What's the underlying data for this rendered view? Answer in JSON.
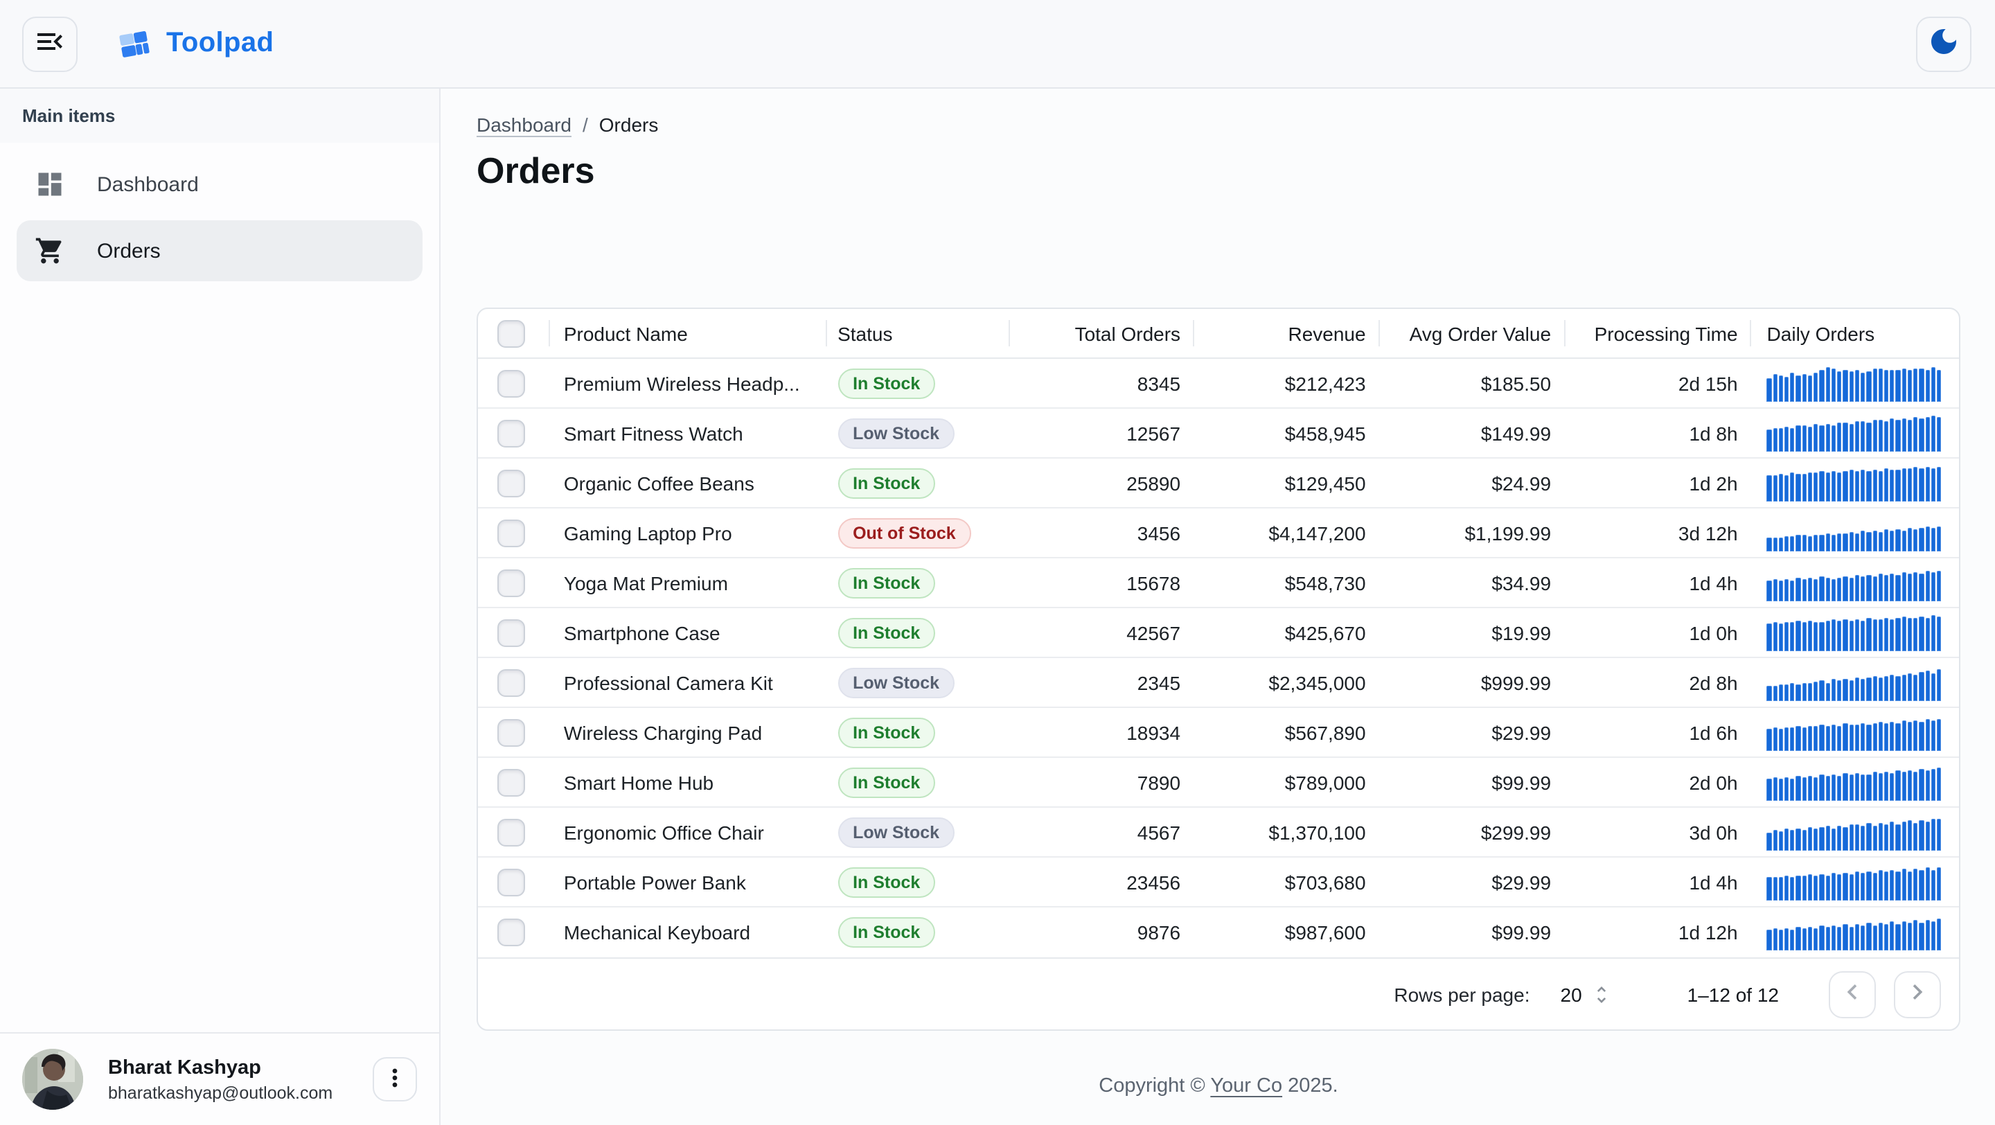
{
  "header": {
    "app_name": "Toolpad"
  },
  "sidebar": {
    "section_label": "Main items",
    "items": [
      {
        "label": "Dashboard",
        "icon": "dashboard-icon",
        "selected": false
      },
      {
        "label": "Orders",
        "icon": "cart-icon",
        "selected": true
      }
    ],
    "user": {
      "name": "Bharat Kashyap",
      "email": "bharatkashyap@outlook.com"
    }
  },
  "breadcrumb": {
    "parent": "Dashboard",
    "separator": "/",
    "current": "Orders"
  },
  "page": {
    "title": "Orders"
  },
  "table": {
    "columns": [
      "Product Name",
      "Status",
      "Total Orders",
      "Revenue",
      "Avg Order Value",
      "Processing Time",
      "Daily Orders"
    ],
    "rows": [
      {
        "product": "Premium Wireless Headp...",
        "status": "In Stock",
        "status_type": "success",
        "total_orders": "8345",
        "revenue": "$212,423",
        "avg_order_value": "$185.50",
        "processing_time": "2d 15h",
        "daily_orders": [
          65,
          75,
          70,
          68,
          80,
          72,
          74,
          70,
          78,
          85,
          95,
          90,
          82,
          88,
          84,
          86,
          80,
          83,
          90,
          92,
          88,
          85,
          87,
          90,
          86,
          89,
          92,
          88,
          95,
          85
        ]
      },
      {
        "product": "Smart Fitness Watch",
        "status": "Low Stock",
        "status_type": "neutral",
        "total_orders": "12567",
        "revenue": "$458,945",
        "avg_order_value": "$149.99",
        "processing_time": "1d 8h",
        "daily_orders": [
          60,
          65,
          62,
          68,
          64,
          70,
          72,
          68,
          74,
          70,
          76,
          72,
          78,
          80,
          76,
          82,
          84,
          80,
          86,
          88,
          84,
          90,
          86,
          92,
          88,
          94,
          90,
          96,
          98,
          95
        ]
      },
      {
        "product": "Organic Coffee Beans",
        "status": "In Stock",
        "status_type": "success",
        "total_orders": "25890",
        "revenue": "$129,450",
        "avg_order_value": "$24.99",
        "processing_time": "1d 2h",
        "daily_orders": [
          70,
          72,
          75,
          73,
          78,
          74,
          76,
          80,
          77,
          82,
          78,
          84,
          80,
          82,
          85,
          81,
          86,
          83,
          88,
          84,
          90,
          86,
          88,
          92,
          89,
          94,
          90,
          95,
          92,
          96
        ]
      },
      {
        "product": "Gaming Laptop Pro",
        "status": "Out of Stock",
        "status_type": "danger",
        "total_orders": "3456",
        "revenue": "$4,147,200",
        "avg_order_value": "$1,199.99",
        "processing_time": "3d 12h",
        "daily_orders": [
          35,
          38,
          36,
          42,
          40,
          45,
          43,
          40,
          46,
          44,
          48,
          45,
          50,
          47,
          52,
          49,
          54,
          51,
          56,
          53,
          58,
          55,
          60,
          57,
          62,
          59,
          64,
          66,
          63,
          68
        ]
      },
      {
        "product": "Yoga Mat Premium",
        "status": "In Stock",
        "status_type": "success",
        "total_orders": "15678",
        "revenue": "$548,730",
        "avg_order_value": "$34.99",
        "processing_time": "1d 4h",
        "daily_orders": [
          55,
          58,
          56,
          60,
          57,
          62,
          59,
          64,
          61,
          66,
          63,
          60,
          65,
          68,
          64,
          70,
          66,
          72,
          68,
          74,
          70,
          76,
          72,
          78,
          74,
          80,
          76,
          82,
          78,
          84
        ]
      },
      {
        "product": "Smartphone Case",
        "status": "In Stock",
        "status_type": "success",
        "total_orders": "42567",
        "revenue": "$425,670",
        "avg_order_value": "$19.99",
        "processing_time": "1d 0h",
        "daily_orders": [
          75,
          78,
          76,
          80,
          77,
          82,
          79,
          84,
          80,
          78,
          83,
          85,
          81,
          86,
          82,
          88,
          84,
          90,
          85,
          88,
          92,
          87,
          90,
          94,
          89,
          92,
          96,
          91,
          98,
          95
        ]
      },
      {
        "product": "Professional Camera Kit",
        "status": "Low Stock",
        "status_type": "neutral",
        "total_orders": "2345",
        "revenue": "$2,345,000",
        "avg_order_value": "$999.99",
        "processing_time": "2d 8h",
        "daily_orders": [
          40,
          42,
          45,
          43,
          48,
          46,
          50,
          48,
          52,
          55,
          50,
          58,
          54,
          60,
          56,
          62,
          58,
          64,
          66,
          62,
          68,
          70,
          66,
          72,
          74,
          70,
          78,
          82,
          76,
          85
        ]
      },
      {
        "product": "Wireless Charging Pad",
        "status": "In Stock",
        "status_type": "success",
        "total_orders": "18934",
        "revenue": "$567,890",
        "avg_order_value": "$29.99",
        "processing_time": "1d 6h",
        "daily_orders": [
          60,
          62,
          61,
          64,
          63,
          66,
          64,
          68,
          66,
          70,
          67,
          72,
          69,
          74,
          71,
          70,
          75,
          73,
          76,
          78,
          74,
          80,
          76,
          82,
          78,
          84,
          80,
          86,
          82,
          88
        ]
      },
      {
        "product": "Smart Home Hub",
        "status": "In Stock",
        "status_type": "success",
        "total_orders": "7890",
        "revenue": "$789,000",
        "avg_order_value": "$99.99",
        "processing_time": "2d 0h",
        "daily_orders": [
          58,
          62,
          60,
          64,
          61,
          66,
          63,
          68,
          64,
          70,
          66,
          72,
          68,
          74,
          70,
          76,
          72,
          70,
          78,
          74,
          80,
          76,
          82,
          78,
          84,
          80,
          86,
          82,
          88,
          90
        ]
      },
      {
        "product": "Ergonomic Office Chair",
        "status": "Low Stock",
        "status_type": "neutral",
        "total_orders": "4567",
        "revenue": "$1,370,100",
        "avg_order_value": "$299.99",
        "processing_time": "3d 0h",
        "daily_orders": [
          50,
          54,
          52,
          58,
          55,
          60,
          57,
          62,
          59,
          64,
          66,
          61,
          68,
          63,
          70,
          72,
          66,
          74,
          69,
          76,
          71,
          78,
          73,
          80,
          82,
          76,
          84,
          79,
          86,
          88
        ]
      },
      {
        "product": "Portable Power Bank",
        "status": "In Stock",
        "status_type": "success",
        "total_orders": "23456",
        "revenue": "$703,680",
        "avg_order_value": "$29.99",
        "processing_time": "1d 4h",
        "daily_orders": [
          62,
          64,
          63,
          66,
          64,
          68,
          66,
          70,
          67,
          72,
          69,
          74,
          70,
          76,
          72,
          78,
          74,
          80,
          75,
          82,
          77,
          84,
          79,
          86,
          80,
          88,
          82,
          90,
          84,
          92
        ]
      },
      {
        "product": "Mechanical Keyboard",
        "status": "In Stock",
        "status_type": "success",
        "total_orders": "9876",
        "revenue": "$987,600",
        "avg_order_value": "$99.99",
        "processing_time": "1d 12h",
        "daily_orders": [
          56,
          60,
          58,
          62,
          59,
          64,
          61,
          66,
          63,
          68,
          64,
          70,
          66,
          72,
          67,
          74,
          69,
          76,
          70,
          78,
          72,
          80,
          74,
          82,
          76,
          84,
          78,
          86,
          80,
          88
        ]
      }
    ]
  },
  "pagination": {
    "rows_per_page_label": "Rows per page:",
    "rows_per_page": "20",
    "range": "1–12 of 12"
  },
  "footer": {
    "copyright_prefix": "Copyright © ",
    "company": "Your Co",
    "copyright_suffix": " 2025."
  },
  "colors": {
    "accent": "#1a73e8",
    "bar_blue": "#1569d9",
    "success_text": "#1e7e2e",
    "neutral_text": "#565f70",
    "danger_text": "#9b1d1d"
  }
}
